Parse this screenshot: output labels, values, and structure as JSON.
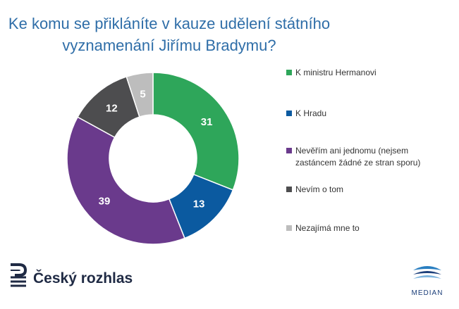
{
  "title": {
    "line1": "Ke komu se přikláníte v kauze udělení státního",
    "line2": "vyznamenání Jiřímu Bradymu?"
  },
  "chart_data": {
    "type": "pie",
    "variant": "donut",
    "categories": [
      "K ministru Hermanovi",
      "K Hradu",
      "Nevěřím ani jednomu (nejsem zastáncem žádné ze stran sporu)",
      "Nevím o tom",
      "Nezajímá mne to"
    ],
    "values": [
      31,
      13,
      39,
      12,
      5
    ],
    "colors": [
      "#2ea65a",
      "#0b5aa0",
      "#6a3a8c",
      "#4d4d4f",
      "#bdbdbd"
    ],
    "legend_position": "right"
  },
  "legend": [
    {
      "label": "K ministru Hermanovi",
      "color": "#2ea65a"
    },
    {
      "label": "K Hradu",
      "color": "#0b5aa0"
    },
    {
      "label": "Nevěřím ani jednomu (nejsem zastáncem žádné ze stran sporu)",
      "color": "#6a3a8c"
    },
    {
      "label": "Nevím o tom",
      "color": "#4d4d4f"
    },
    {
      "label": "Nezajímá mne to",
      "color": "#bdbdbd"
    }
  ],
  "branding": {
    "left_name": "Český rozhlas",
    "right_name": "MEDIAN",
    "left_icon": "cesky-rozhlas-logo-icon",
    "right_icon": "median-logo-icon"
  }
}
